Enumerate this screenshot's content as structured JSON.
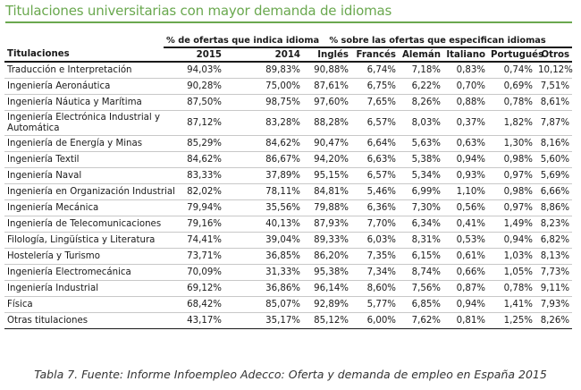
{
  "title": "Titulaciones universitarias con mayor demanda de idiomas",
  "group_headers": {
    "pct_offers": "% de ofertas que indica idioma",
    "pct_specified": "% sobre las ofertas que especifican idiomas"
  },
  "columns": [
    "Titulaciones",
    "2015",
    "2014",
    "Inglés",
    "Francés",
    "Alemán",
    "Italiano",
    "Portugués",
    "Otros"
  ],
  "rows": [
    {
      "name": "Traducción e Interpretación",
      "v": [
        "94,03%",
        "89,83%",
        "90,88%",
        "6,74%",
        "7,18%",
        "0,83%",
        "0,74%",
        "10,12%"
      ]
    },
    {
      "name": "Ingeniería Aeronáutica",
      "v": [
        "90,28%",
        "75,00%",
        "87,61%",
        "6,75%",
        "6,22%",
        "0,70%",
        "0,69%",
        "7,51%"
      ]
    },
    {
      "name": "Ingeniería Náutica y Marítima",
      "v": [
        "87,50%",
        "98,75%",
        "97,60%",
        "7,65%",
        "8,26%",
        "0,88%",
        "0,78%",
        "8,61%"
      ]
    },
    {
      "name": "Ingeniería Electrónica Industrial y Automática",
      "v": [
        "87,12%",
        "83,28%",
        "88,28%",
        "6,57%",
        "8,03%",
        "0,37%",
        "1,82%",
        "7,87%"
      ]
    },
    {
      "name": "Ingeniería de Energía y Minas",
      "v": [
        "85,29%",
        "84,62%",
        "90,47%",
        "6,64%",
        "5,63%",
        "0,63%",
        "1,30%",
        "8,16%"
      ]
    },
    {
      "name": "Ingeniería Textil",
      "v": [
        "84,62%",
        "86,67%",
        "94,20%",
        "6,63%",
        "5,38%",
        "0,94%",
        "0,98%",
        "5,60%"
      ]
    },
    {
      "name": "Ingeniería Naval",
      "v": [
        "83,33%",
        "37,89%",
        "95,15%",
        "6,57%",
        "5,34%",
        "0,93%",
        "0,97%",
        "5,69%"
      ]
    },
    {
      "name": "Ingeniería en Organización Industrial",
      "v": [
        "82,02%",
        "78,11%",
        "84,81%",
        "5,46%",
        "6,99%",
        "1,10%",
        "0,98%",
        "6,66%"
      ]
    },
    {
      "name": "Ingeniería Mecánica",
      "v": [
        "79,94%",
        "35,56%",
        "79,88%",
        "6,36%",
        "7,30%",
        "0,56%",
        "0,97%",
        "8,86%"
      ]
    },
    {
      "name": "Ingeniería de Telecomunicaciones",
      "v": [
        "79,16%",
        "40,13%",
        "87,93%",
        "7,70%",
        "6,34%",
        "0,41%",
        "1,49%",
        "8,23%"
      ]
    },
    {
      "name": "Filología, Lingüística y Literatura",
      "v": [
        "74,41%",
        "39,04%",
        "89,33%",
        "6,03%",
        "8,31%",
        "0,53%",
        "0,94%",
        "6,82%"
      ]
    },
    {
      "name": "Hostelería y Turismo",
      "v": [
        "73,71%",
        "36,85%",
        "86,20%",
        "7,35%",
        "6,15%",
        "0,61%",
        "1,03%",
        "8,13%"
      ]
    },
    {
      "name": "Ingeniería Electromecánica",
      "v": [
        "70,09%",
        "31,33%",
        "95,38%",
        "7,34%",
        "8,74%",
        "0,66%",
        "1,05%",
        "7,73%"
      ]
    },
    {
      "name": "Ingeniería Industrial",
      "v": [
        "69,12%",
        "36,86%",
        "96,14%",
        "8,60%",
        "7,56%",
        "0,87%",
        "0,78%",
        "9,11%"
      ]
    },
    {
      "name": "Física",
      "v": [
        "68,42%",
        "85,07%",
        "92,89%",
        "5,77%",
        "6,85%",
        "0,94%",
        "1,41%",
        "7,93%"
      ]
    },
    {
      "name": "Otras titulaciones",
      "v": [
        "43,17%",
        "35,17%",
        "85,12%",
        "6,00%",
        "7,62%",
        "0,81%",
        "1,25%",
        "8,26%"
      ]
    }
  ],
  "caption": "Tabla 7. Fuente: Informe Infoempleo Adecco: Oferta y demanda de empleo en España 2015",
  "colors": {
    "title": "#6aa84f",
    "rule": "#6aa84f"
  }
}
